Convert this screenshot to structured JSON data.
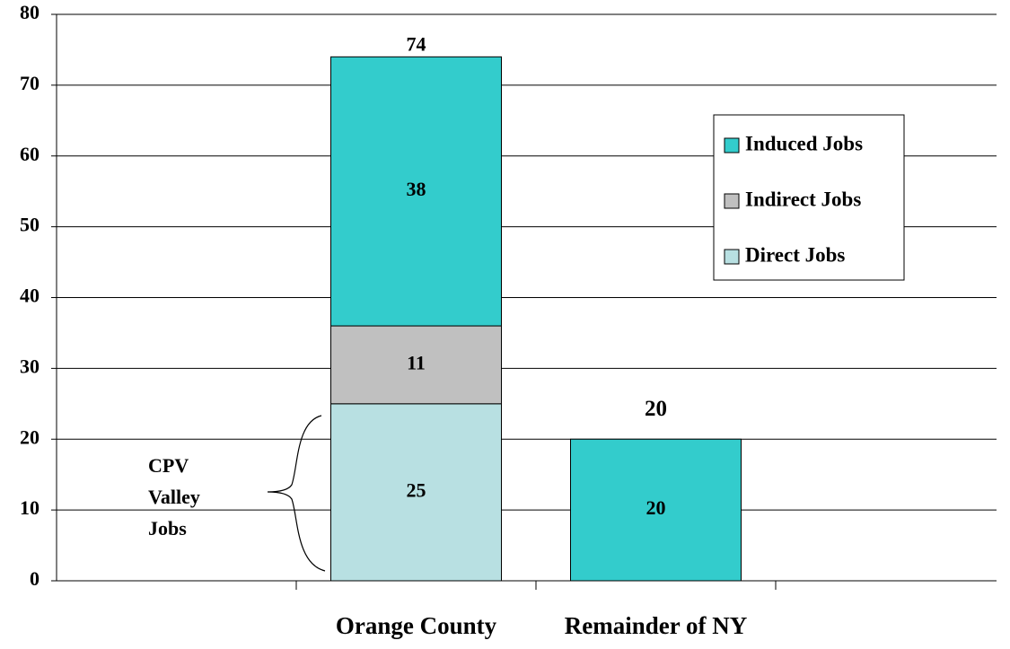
{
  "chart_data": {
    "type": "stacked_bar",
    "categories": [
      null,
      "Orange County",
      "Remainder of NY",
      null
    ],
    "series": [
      {
        "name": "Direct Jobs",
        "color": "#b8e0e2",
        "values": [
          null,
          25,
          null,
          null
        ]
      },
      {
        "name": "Indirect Jobs",
        "color": "#c0c0c0",
        "values": [
          null,
          11,
          null,
          null
        ]
      },
      {
        "name": "Induced Jobs",
        "color": "#33cccc",
        "values": [
          null,
          38,
          20,
          null
        ]
      }
    ],
    "totals": [
      null,
      74,
      20,
      null
    ],
    "annotation": [
      "CPV",
      "Valley",
      "Jobs"
    ],
    "ylim": [
      0,
      80
    ],
    "yticks": [
      0,
      10,
      20,
      30,
      40,
      50,
      60,
      70,
      80
    ],
    "grid": true
  }
}
